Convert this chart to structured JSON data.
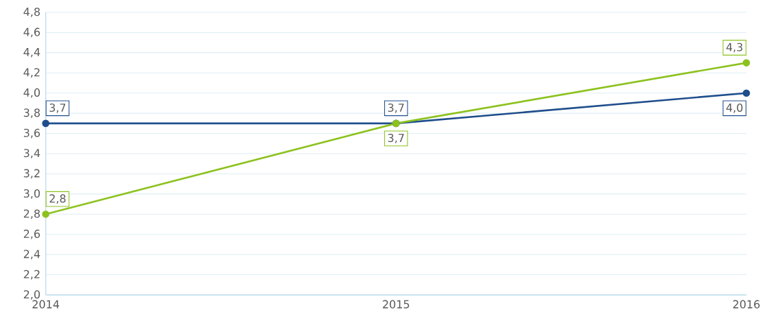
{
  "chart_data": {
    "type": "line",
    "categories": [
      "2014",
      "2015",
      "2016"
    ],
    "series": [
      {
        "color": "#1f4e8c",
        "values": [
          3.7,
          3.7,
          4.0
        ],
        "value_labels": [
          "3,7",
          "3,7",
          "4,0"
        ]
      },
      {
        "color": "#8dc21f",
        "values": [
          2.8,
          3.7,
          4.3
        ],
        "value_labels": [
          "2,8",
          "3,7",
          "4,3"
        ]
      }
    ],
    "ylim": [
      2.0,
      4.8
    ],
    "yticks": [
      {
        "value": 2.0,
        "label": "2,0"
      },
      {
        "value": 2.2,
        "label": "2,2"
      },
      {
        "value": 2.4,
        "label": "2,4"
      },
      {
        "value": 2.6,
        "label": "2,6"
      },
      {
        "value": 2.8,
        "label": "2,8"
      },
      {
        "value": 3.0,
        "label": "3,0"
      },
      {
        "value": 3.2,
        "label": "3,2"
      },
      {
        "value": 3.4,
        "label": "3,4"
      },
      {
        "value": 3.6,
        "label": "3,6"
      },
      {
        "value": 3.8,
        "label": "3,8"
      },
      {
        "value": 4.0,
        "label": "4,0"
      },
      {
        "value": 4.2,
        "label": "4,2"
      },
      {
        "value": 4.4,
        "label": "4,4"
      },
      {
        "value": 4.6,
        "label": "4,6"
      },
      {
        "value": 4.8,
        "label": "4,8"
      }
    ],
    "grid": "y",
    "marker": "circle",
    "line_style": "solid"
  }
}
